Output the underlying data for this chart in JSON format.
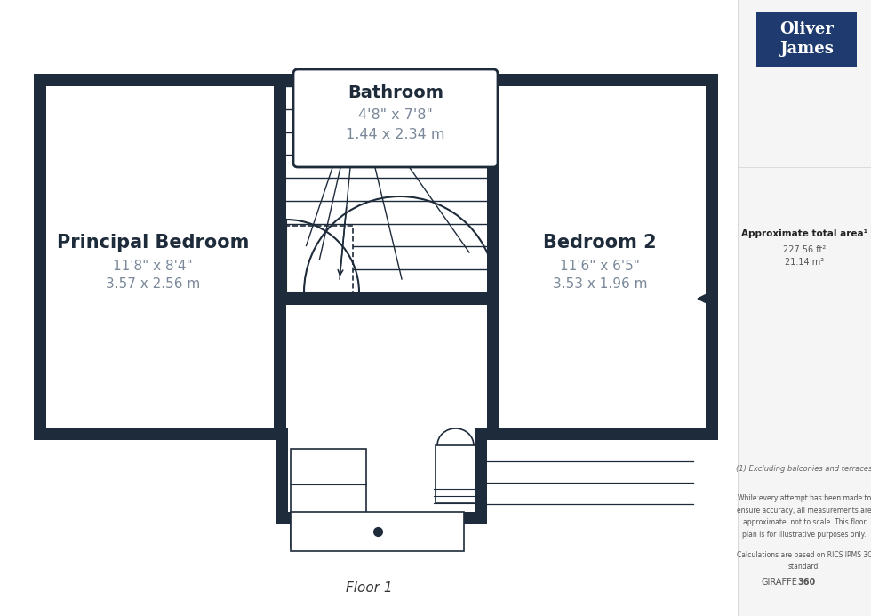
{
  "bg": "#ffffff",
  "wc": "#1e2b3a",
  "sidebar_bg": "#f5f5f5",
  "logo_bg": "#1e3a6e",
  "logo_text": "Oliver\nJames",
  "floor_label": "Floor 1",
  "room1_name": "Principal Bedroom",
  "room1_dim1": "11'8\" x 8'4\"",
  "room1_dim2": "3.57 x 2.56 m",
  "room2_name": "Bedroom 2",
  "room2_dim1": "11'6\" x 6'5\"",
  "room2_dim2": "3.53 x 1.96 m",
  "bath_name": "Bathroom",
  "bath_dim1": "4'8\" x 7'8\"",
  "bath_dim2": "1.44 x 2.34 m",
  "area_label": "Approximate total area",
  "area_ft": "227.56 ft²",
  "area_m": "21.14 m²",
  "note1": "(1) Excluding balconies and terraces",
  "note2": "While every attempt has been made to\nensure accuracy, all measurements are\napproximate, not to scale. This floor\nplan is for illustrative purposes only.",
  "note3": "Calculations are based on RICS IPMS 3C\nstandard.",
  "brand_regular": "GIRAFFE",
  "brand_bold": "360"
}
